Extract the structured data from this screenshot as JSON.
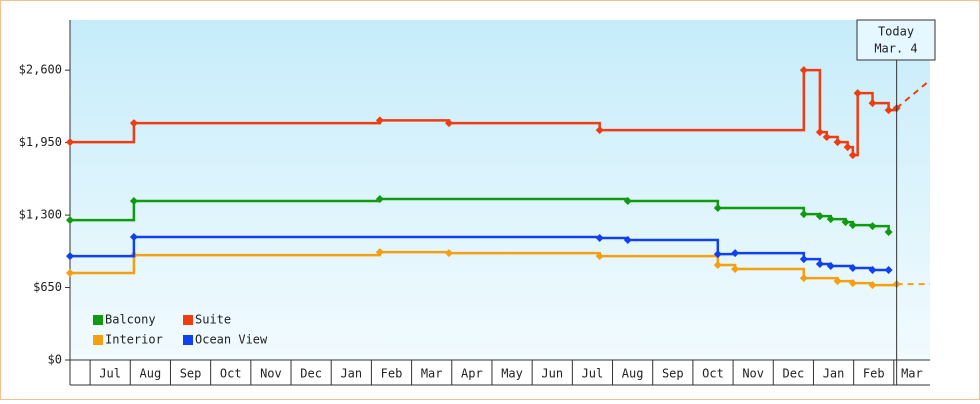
{
  "chart_data": {
    "type": "step-line",
    "xlim": [
      0.5,
      21.9
    ],
    "categories": [
      null,
      "Jul",
      "Aug",
      "Sep",
      "Oct",
      "Nov",
      "Dec",
      "Jan",
      "Feb",
      "Mar",
      "Apr",
      "May",
      "Jun",
      "Jul",
      "Aug",
      "Sep",
      "Oct",
      "Nov",
      "Dec",
      "Jan",
      "Feb",
      "Mar"
    ],
    "ylim": [
      0,
      3050
    ],
    "yticks": [
      {
        "value": 0,
        "label": "$0"
      },
      {
        "value": 650,
        "label": "$650"
      },
      {
        "value": 1300,
        "label": "$1,300"
      },
      {
        "value": 1950,
        "label": "$1,950"
      },
      {
        "value": 2600,
        "label": "$2,600"
      }
    ],
    "today": {
      "label": [
        "Today",
        "Mar. 4"
      ],
      "x": 21.07
    },
    "series": [
      {
        "name": "Balcony",
        "color": "#109a10",
        "x": [
          0.5,
          2.09,
          8.21,
          14.38,
          16.62,
          18.76,
          19.16,
          19.43,
          19.8,
          19.98,
          20.47,
          20.87
        ],
        "values": [
          1255,
          1426,
          1444,
          1426,
          1363,
          1309,
          1291,
          1264,
          1237,
          1210,
          1201,
          1148
        ]
      },
      {
        "name": "Suite",
        "color": "#f03c10",
        "x": [
          0.5,
          2.09,
          8.21,
          9.93,
          13.68,
          18.76,
          19.16,
          19.33,
          19.6,
          19.85,
          19.98,
          20.1,
          20.47,
          20.87,
          21.07
        ],
        "values": [
          1955,
          2125,
          2150,
          2125,
          2062,
          2600,
          2044,
          2000,
          1955,
          1910,
          1838,
          2394,
          2304,
          2241,
          2260
        ],
        "projection": {
          "x": [
            21.07,
            21.9
          ],
          "values": [
            2260,
            2510
          ]
        }
      },
      {
        "name": "Interior",
        "color": "#f5a010",
        "x": [
          0.5,
          2.09,
          8.21,
          9.93,
          13.68,
          16.62,
          17.05,
          18.76,
          19.6,
          19.98,
          20.47,
          21.07
        ],
        "values": [
          780,
          941,
          968,
          959,
          932,
          852,
          816,
          735,
          708,
          690,
          672,
          681
        ],
        "projection": {
          "x": [
            21.07,
            21.9
          ],
          "values": [
            681,
            681
          ]
        }
      },
      {
        "name": "Ocean View",
        "color": "#1040f0",
        "x": [
          0.5,
          2.09,
          13.68,
          14.38,
          16.62,
          17.05,
          18.76,
          19.16,
          19.43,
          19.98,
          20.47,
          20.87
        ],
        "values": [
          932,
          1103,
          1094,
          1076,
          950,
          959,
          905,
          861,
          843,
          825,
          807,
          807
        ]
      }
    ]
  }
}
